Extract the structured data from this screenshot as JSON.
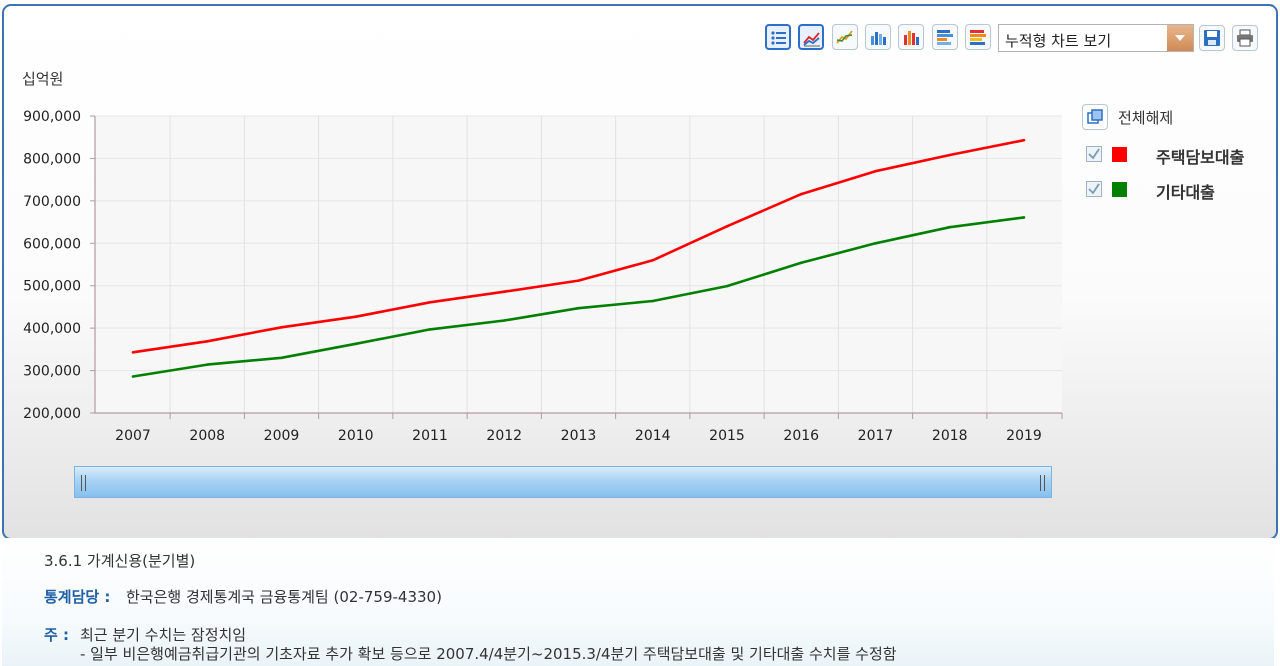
{
  "toolbar": {
    "buttons": [
      {
        "icon": "list-icon",
        "active": true
      },
      {
        "icon": "line-chart-icon",
        "active": true
      },
      {
        "icon": "line-chart-alt-icon",
        "active": false
      },
      {
        "icon": "bar-chart-icon",
        "active": false
      },
      {
        "icon": "bar-chart-color-icon",
        "active": false
      },
      {
        "icon": "horizontal-bar-icon",
        "active": false
      },
      {
        "icon": "stacked-bar-icon",
        "active": false
      }
    ],
    "chart_type_select": "누적형 차트 보기",
    "save_icon": "save-icon",
    "print_icon": "print-icon"
  },
  "legend": {
    "toggle_all_label": "전체해제",
    "items": [
      {
        "label": "주택담보대출",
        "color": "#ff0000",
        "checked": true
      },
      {
        "label": "기타대출",
        "color": "#008000",
        "checked": true
      }
    ]
  },
  "chart_data": {
    "type": "line",
    "unit_label": "십억원",
    "x": [
      "2007",
      "2008",
      "2009",
      "2010",
      "2011",
      "2012",
      "2013",
      "2014",
      "2015",
      "2016",
      "2017",
      "2018",
      "2019"
    ],
    "ylim": [
      200000,
      900000
    ],
    "yticks": [
      200000,
      300000,
      400000,
      500000,
      600000,
      700000,
      800000,
      900000
    ],
    "ytick_labels": [
      "200,000",
      "300,000",
      "400,000",
      "500,000",
      "600,000",
      "700,000",
      "800,000",
      "900,000"
    ],
    "grid": true,
    "legend_position": "right",
    "series": [
      {
        "name": "주택담보대출",
        "color": "#ff0000",
        "values": [
          343000,
          369000,
          402000,
          427000,
          461000,
          486000,
          512000,
          560000,
          640000,
          716000,
          770000,
          808000,
          843000
        ]
      },
      {
        "name": "기타대출",
        "color": "#008000",
        "values": [
          286000,
          314000,
          330000,
          363000,
          397000,
          418000,
          447000,
          464000,
          499000,
          554000,
          600000,
          638000,
          661000
        ]
      }
    ]
  },
  "notes": {
    "title": "3.6.1 가계신용(분기별)",
    "contact_label": "통계담당 :",
    "contact_value": "한국은행 경제통계국 금융통계팀 (02-759-4330)",
    "note_label": "주 :",
    "note_line1": "최근 분기 수치는 잠정치임",
    "note_line2": "- 일부 비은행예금취급기관의 기초자료 추가 확보 등으로 2007.4/4분기~2015.3/4분기 주택담보대출 및 기타대출 수치를 수정함"
  }
}
